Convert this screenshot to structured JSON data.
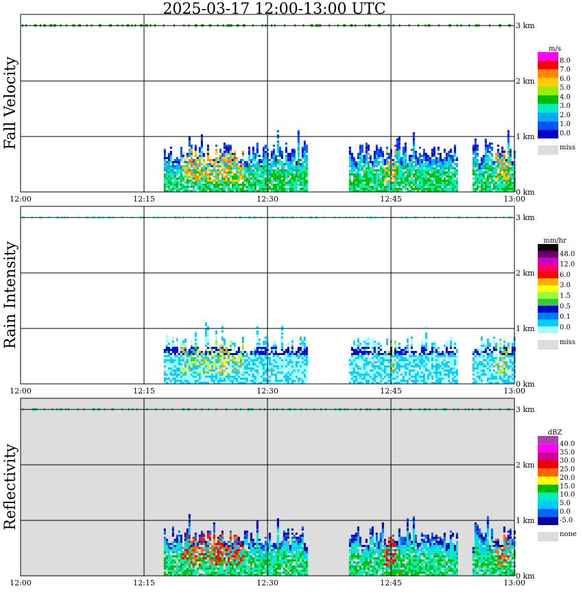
{
  "title": "2025-03-17  12:00-13:00 UTC",
  "chart_data": [
    {
      "type": "heatmap",
      "ylabel": "Fall Velocity",
      "unit": "m/s",
      "xticks": [
        "12:00",
        "12:15",
        "12:30",
        "12:45",
        "13:00"
      ],
      "yticks": [
        "0 km",
        "1 km",
        "2 km",
        "3 km"
      ],
      "ylim": [
        0,
        3.2
      ],
      "grid": true,
      "background": "#ffffff",
      "legend": {
        "position": "right",
        "levels": [
          "8.0",
          "7.0",
          "6.0",
          "5.0",
          "4.0",
          "3.0",
          "2.0",
          "1.0",
          "0.0"
        ],
        "colors": [
          "#ff00ff",
          "#ff0000",
          "#ff8800",
          "#ffcc00",
          "#99ee00",
          "#00bb00",
          "#00eebb",
          "#00aaff",
          "#0055ff",
          "#0000cc"
        ],
        "miss_label": "miss",
        "miss_color": "#dddddd"
      }
    },
    {
      "type": "heatmap",
      "ylabel": "Rain Intensity",
      "unit": "mm/hr",
      "xticks": [
        "12:00",
        "12:15",
        "12:30",
        "12:45",
        "13:00"
      ],
      "yticks": [
        "0 km",
        "1 km",
        "2 km",
        "3 km"
      ],
      "ylim": [
        0,
        3.2
      ],
      "grid": true,
      "background": "#ffffff",
      "legend": {
        "position": "right",
        "levels": [
          "48.0",
          "12.0",
          "6.0",
          "3.0",
          "1.5",
          "0.5",
          "0.1",
          "0.0"
        ],
        "colors": [
          "#000000",
          "#660066",
          "#cc00cc",
          "#ff0066",
          "#ff0000",
          "#ffaa00",
          "#ffff00",
          "#99ff33",
          "#33cc33",
          "#0000cc",
          "#0077ff",
          "#00ccff",
          "#99ffff"
        ],
        "miss_label": "miss",
        "miss_color": "#dddddd"
      }
    },
    {
      "type": "heatmap",
      "ylabel": "Reflectivity",
      "unit": "dBZ",
      "xticks": [
        "12:00",
        "12:15",
        "12:30",
        "12:45",
        "13:00"
      ],
      "yticks": [
        "0 km",
        "1 km",
        "2 km",
        "3 km"
      ],
      "ylim": [
        0,
        3.2
      ],
      "grid": true,
      "background": "#dddddd",
      "legend": {
        "position": "right",
        "levels": [
          "40.0",
          "35.0",
          "30.0",
          "25.0",
          "20.0",
          "15.0",
          "10.0",
          "5.0",
          "0.0",
          "-5.0"
        ],
        "colors": [
          "#aa44aa",
          "#ff00ff",
          "#cc0099",
          "#ee0000",
          "#ff6600",
          "#ffff00",
          "#00bb00",
          "#00eebb",
          "#00ccff",
          "#0066ff",
          "#0000aa"
        ],
        "miss_label": "none",
        "miss_color": "#dddddd"
      }
    }
  ]
}
